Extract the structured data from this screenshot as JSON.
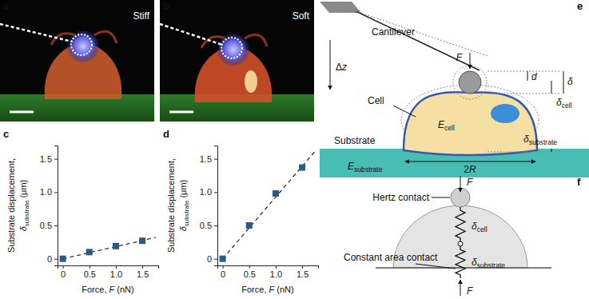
{
  "chart_data": [
    {
      "type": "scatter",
      "panel": "c",
      "xlabel": [
        {
          "t": "Force, "
        },
        {
          "t": "F",
          "i": true
        },
        {
          "t": " (nN)"
        }
      ],
      "ylabel": [
        [
          {
            "t": "Substrate displacement,"
          }
        ],
        [
          {
            "t": "δ",
            "i": true
          },
          {
            "t": "substrate",
            "sub": true
          },
          {
            "t": " (μm)"
          }
        ]
      ],
      "xlim": [
        -0.1,
        1.8
      ],
      "ylim": [
        -0.1,
        1.7
      ],
      "xticks": [
        0,
        0.5,
        {
          "value": 1,
          "label": "1.0"
        },
        1.5
      ],
      "yticks": [
        0,
        0.5,
        {
          "value": 1,
          "label": "1.0"
        },
        1.5
      ],
      "series": [
        {
          "type": "scatter",
          "marker": "square",
          "color": "#2b5b84",
          "x": [
            0,
            0.5,
            1,
            1.5
          ],
          "values": [
            0,
            0.1,
            0.19,
            0.27
          ]
        },
        {
          "type": "line",
          "line_style": "dashed",
          "color": "#333333",
          "x": [
            0,
            1.75
          ],
          "values": [
            0,
            0.32
          ]
        }
      ]
    },
    {
      "type": "scatter",
      "panel": "d",
      "xlabel": [
        {
          "t": "Force, "
        },
        {
          "t": "F",
          "i": true
        },
        {
          "t": " (nN)"
        }
      ],
      "ylabel": [
        [
          {
            "t": "Substrate displacement,"
          }
        ],
        [
          {
            "t": "δ",
            "i": true
          },
          {
            "t": "substrate",
            "sub": true
          },
          {
            "t": " (μm)"
          }
        ]
      ],
      "xlim": [
        -0.1,
        1.8
      ],
      "ylim": [
        -0.1,
        1.7
      ],
      "xticks": [
        0,
        0.5,
        {
          "value": 1,
          "label": "1.0"
        },
        1.5
      ],
      "yticks": [
        0,
        0.5,
        {
          "value": 1,
          "label": "1.0"
        },
        1.5
      ],
      "series": [
        {
          "type": "scatter",
          "marker": "square",
          "color": "#2b5b84",
          "x": [
            0,
            0.5,
            1,
            1.5
          ],
          "values": [
            0,
            0.5,
            0.98,
            1.37
          ]
        },
        {
          "type": "line",
          "line_style": "dashed",
          "color": "#333333",
          "x": [
            0,
            1.75
          ],
          "values": [
            0,
            1.62
          ]
        }
      ]
    }
  ],
  "images": [
    {
      "panel": "a",
      "label": "Stiff"
    },
    {
      "panel": "b",
      "label": "Soft"
    }
  ],
  "diagram_e": {
    "panel": "e",
    "labels": {
      "cantilever": [
        {
          "t": "Cantilever"
        }
      ],
      "force": [
        {
          "t": "F",
          "i": true
        }
      ],
      "dz": [
        {
          "t": "Δ"
        },
        {
          "t": "z",
          "i": true
        }
      ],
      "d": [
        {
          "t": "d",
          "i": true
        }
      ],
      "delta": [
        {
          "t": "δ",
          "i": true
        }
      ],
      "cell": [
        {
          "t": "Cell"
        }
      ],
      "ecell": [
        {
          "t": "E",
          "i": true
        },
        {
          "t": "cell",
          "sub": true
        }
      ],
      "dcell": [
        {
          "t": "δ",
          "i": true
        },
        {
          "t": "cell",
          "sub": true
        }
      ],
      "substrate": [
        {
          "t": "Substrate"
        }
      ],
      "dsubstrate": [
        {
          "t": "δ",
          "i": true
        },
        {
          "t": "substrate",
          "sub": true
        }
      ],
      "esubstrate": [
        {
          "t": "E",
          "i": true
        },
        {
          "t": "substrate",
          "sub": true
        }
      ],
      "r2": [
        {
          "t": "2"
        },
        {
          "t": "R",
          "i": true
        }
      ]
    }
  },
  "diagram_f": {
    "panel": "f",
    "labels": {
      "hertz": [
        {
          "t": "Hertz"
        },
        {
          "t": " contact"
        }
      ],
      "ftop": [
        {
          "t": "F",
          "i": true
        }
      ],
      "dcell": [
        {
          "t": "δ",
          "i": true
        },
        {
          "t": "cell",
          "sub": true
        }
      ],
      "constant": [
        {
          "t": "Constant area"
        },
        {
          "t": " contact"
        }
      ],
      "dsubstrate": [
        {
          "t": "δ",
          "i": true
        },
        {
          "t": "substrate",
          "sub": true
        }
      ],
      "fbottom": [
        {
          "t": "F",
          "i": true
        }
      ]
    }
  }
}
